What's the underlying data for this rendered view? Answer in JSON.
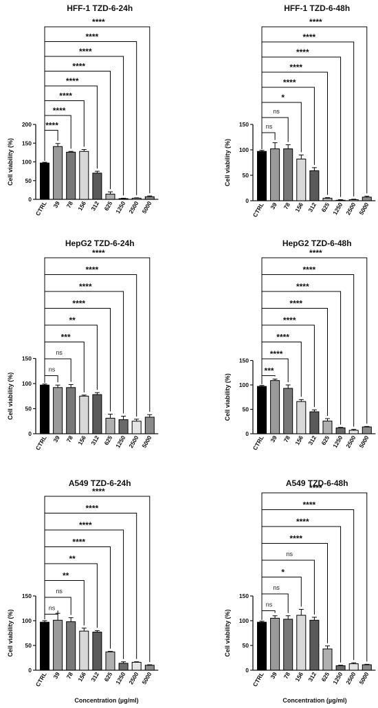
{
  "figure": {
    "xlabel": "Concentration (µg/ml)"
  },
  "chart_data": [
    {
      "type": "bar",
      "title": "HFF-1 TZD-6-24h",
      "ylabel": "Cell viability (%)",
      "categories": [
        "CTRL",
        "39",
        "78",
        "156",
        "312",
        "625",
        "1250",
        "2500",
        "5000"
      ],
      "values": [
        97,
        141,
        126,
        128,
        70,
        14,
        2,
        3,
        7
      ],
      "errors": [
        2,
        8,
        2,
        5,
        5,
        6,
        1,
        1,
        2
      ],
      "yticks": [
        0,
        50,
        100,
        150,
        200
      ],
      "ylim": [
        0,
        200
      ],
      "significance": [
        "****",
        "****",
        "****",
        "****",
        "****",
        "****",
        "****",
        "****"
      ]
    },
    {
      "type": "bar",
      "title": "HFF-1 TZD-6-48h",
      "ylabel": "Cell viability (%)",
      "categories": [
        "CTRL",
        "39",
        "78",
        "156",
        "312",
        "625",
        "1250",
        "2500",
        "5000"
      ],
      "values": [
        97,
        102,
        102,
        82,
        59,
        5,
        1,
        2,
        7
      ],
      "errors": [
        2,
        12,
        8,
        8,
        6,
        1,
        1,
        1,
        2
      ],
      "yticks": [
        0,
        50,
        100,
        150
      ],
      "ylim": [
        0,
        150
      ],
      "significance": [
        "ns",
        "ns",
        "*",
        "****",
        "****",
        "****",
        "****",
        "****"
      ]
    },
    {
      "type": "bar",
      "title": "HepG2 TZD-6-24h",
      "ylabel": "Cell viability (%)",
      "categories": [
        "CTRL",
        "39",
        "78",
        "156",
        "312",
        "625",
        "1250",
        "2500",
        "5000"
      ],
      "values": [
        97,
        92,
        92,
        75,
        78,
        31,
        28,
        25,
        33
      ],
      "errors": [
        2,
        5,
        6,
        2,
        4,
        8,
        7,
        4,
        5
      ],
      "yticks": [
        0,
        50,
        100,
        150
      ],
      "ylim": [
        0,
        150
      ],
      "significance": [
        "ns",
        "ns",
        "***",
        "**",
        "****",
        "****",
        "****",
        "****"
      ]
    },
    {
      "type": "bar",
      "title": "HepG2 TZD-6-48h",
      "ylabel": "Cell viability (%)",
      "categories": [
        "CTRL",
        "39",
        "78",
        "156",
        "312",
        "625",
        "1250",
        "2500",
        "5000"
      ],
      "values": [
        97,
        109,
        93,
        66,
        45,
        26,
        12,
        7,
        14
      ],
      "errors": [
        2,
        3,
        7,
        4,
        4,
        5,
        1,
        2,
        1
      ],
      "yticks": [
        0,
        50,
        100,
        150
      ],
      "ylim": [
        0,
        150
      ],
      "significance": [
        "***",
        "****",
        "****",
        "****",
        "****",
        "****",
        "****",
        "****"
      ]
    },
    {
      "type": "bar",
      "title": "A549 TZD-6-24h",
      "ylabel": "Cell viability (%)",
      "categories": [
        "CTRL",
        "39",
        "78",
        "156",
        "312",
        "625",
        "1250",
        "2500",
        "5000"
      ],
      "values": [
        97,
        101,
        98,
        79,
        77,
        37,
        14,
        16,
        10
      ],
      "errors": [
        3,
        14,
        8,
        6,
        3,
        1,
        3,
        1,
        1
      ],
      "yticks": [
        0,
        50,
        100,
        150
      ],
      "ylim": [
        0,
        150
      ],
      "significance": [
        "ns",
        "ns",
        "**",
        "**",
        "****",
        "****",
        "****",
        "****"
      ]
    },
    {
      "type": "bar",
      "title": "A549 TZD-6-48h",
      "ylabel": "Cell viability (%)",
      "categories": [
        "CTRL",
        "39",
        "78",
        "156",
        "312",
        "625",
        "1250",
        "2500",
        "5000"
      ],
      "values": [
        97,
        105,
        103,
        111,
        101,
        43,
        9,
        13,
        11
      ],
      "errors": [
        2,
        5,
        7,
        12,
        6,
        6,
        1,
        2,
        1
      ],
      "yticks": [
        0,
        50,
        100,
        150
      ],
      "ylim": [
        0,
        150
      ],
      "significance": [
        "ns",
        "ns",
        "*",
        "ns",
        "****",
        "****",
        "****",
        "****"
      ]
    }
  ],
  "colors": {
    "bars": [
      "#000000",
      "#9a9a9a",
      "#787878",
      "#d8d8d8",
      "#5a5a5a",
      "#b0b0b0",
      "#6a6a6a",
      "#e4e4e4",
      "#8a8a8a"
    ],
    "axis": "#111111"
  }
}
